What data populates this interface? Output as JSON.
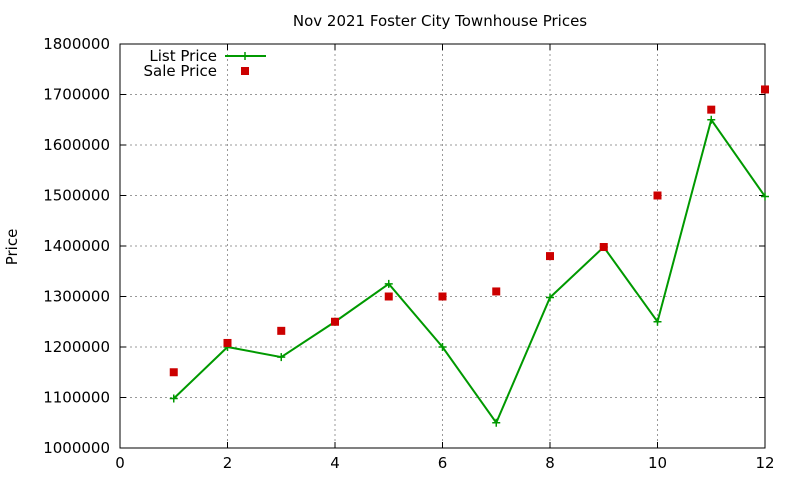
{
  "chart_data": {
    "type": "line",
    "title": "Nov 2021 Foster City Townhouse Prices",
    "xlabel": "",
    "ylabel": "Price",
    "xlim": [
      0,
      12
    ],
    "ylim": [
      1000000,
      1800000
    ],
    "x_ticks": [
      0,
      2,
      4,
      6,
      8,
      10,
      12
    ],
    "y_ticks": [
      1000000,
      1100000,
      1200000,
      1300000,
      1400000,
      1500000,
      1600000,
      1700000,
      1800000
    ],
    "grid": true,
    "legend_position": "top-left",
    "series": [
      {
        "name": "List Price",
        "style": "line-with-plus-markers",
        "color": "#009900",
        "x": [
          1,
          2,
          3,
          4,
          5,
          6,
          7,
          8,
          9,
          10,
          11,
          12
        ],
        "y": [
          1098000,
          1200000,
          1180000,
          1250000,
          1325000,
          1200000,
          1050000,
          1298000,
          1398000,
          1250000,
          1650000,
          1498000
        ]
      },
      {
        "name": "Sale Price",
        "style": "square-markers",
        "color": "#cc0000",
        "x": [
          1,
          2,
          3,
          4,
          5,
          6,
          7,
          8,
          9,
          10,
          11,
          12
        ],
        "y": [
          1150000,
          1208000,
          1232000,
          1250000,
          1300000,
          1300000,
          1310000,
          1380000,
          1398000,
          1500000,
          1670000,
          1710000
        ]
      }
    ]
  }
}
